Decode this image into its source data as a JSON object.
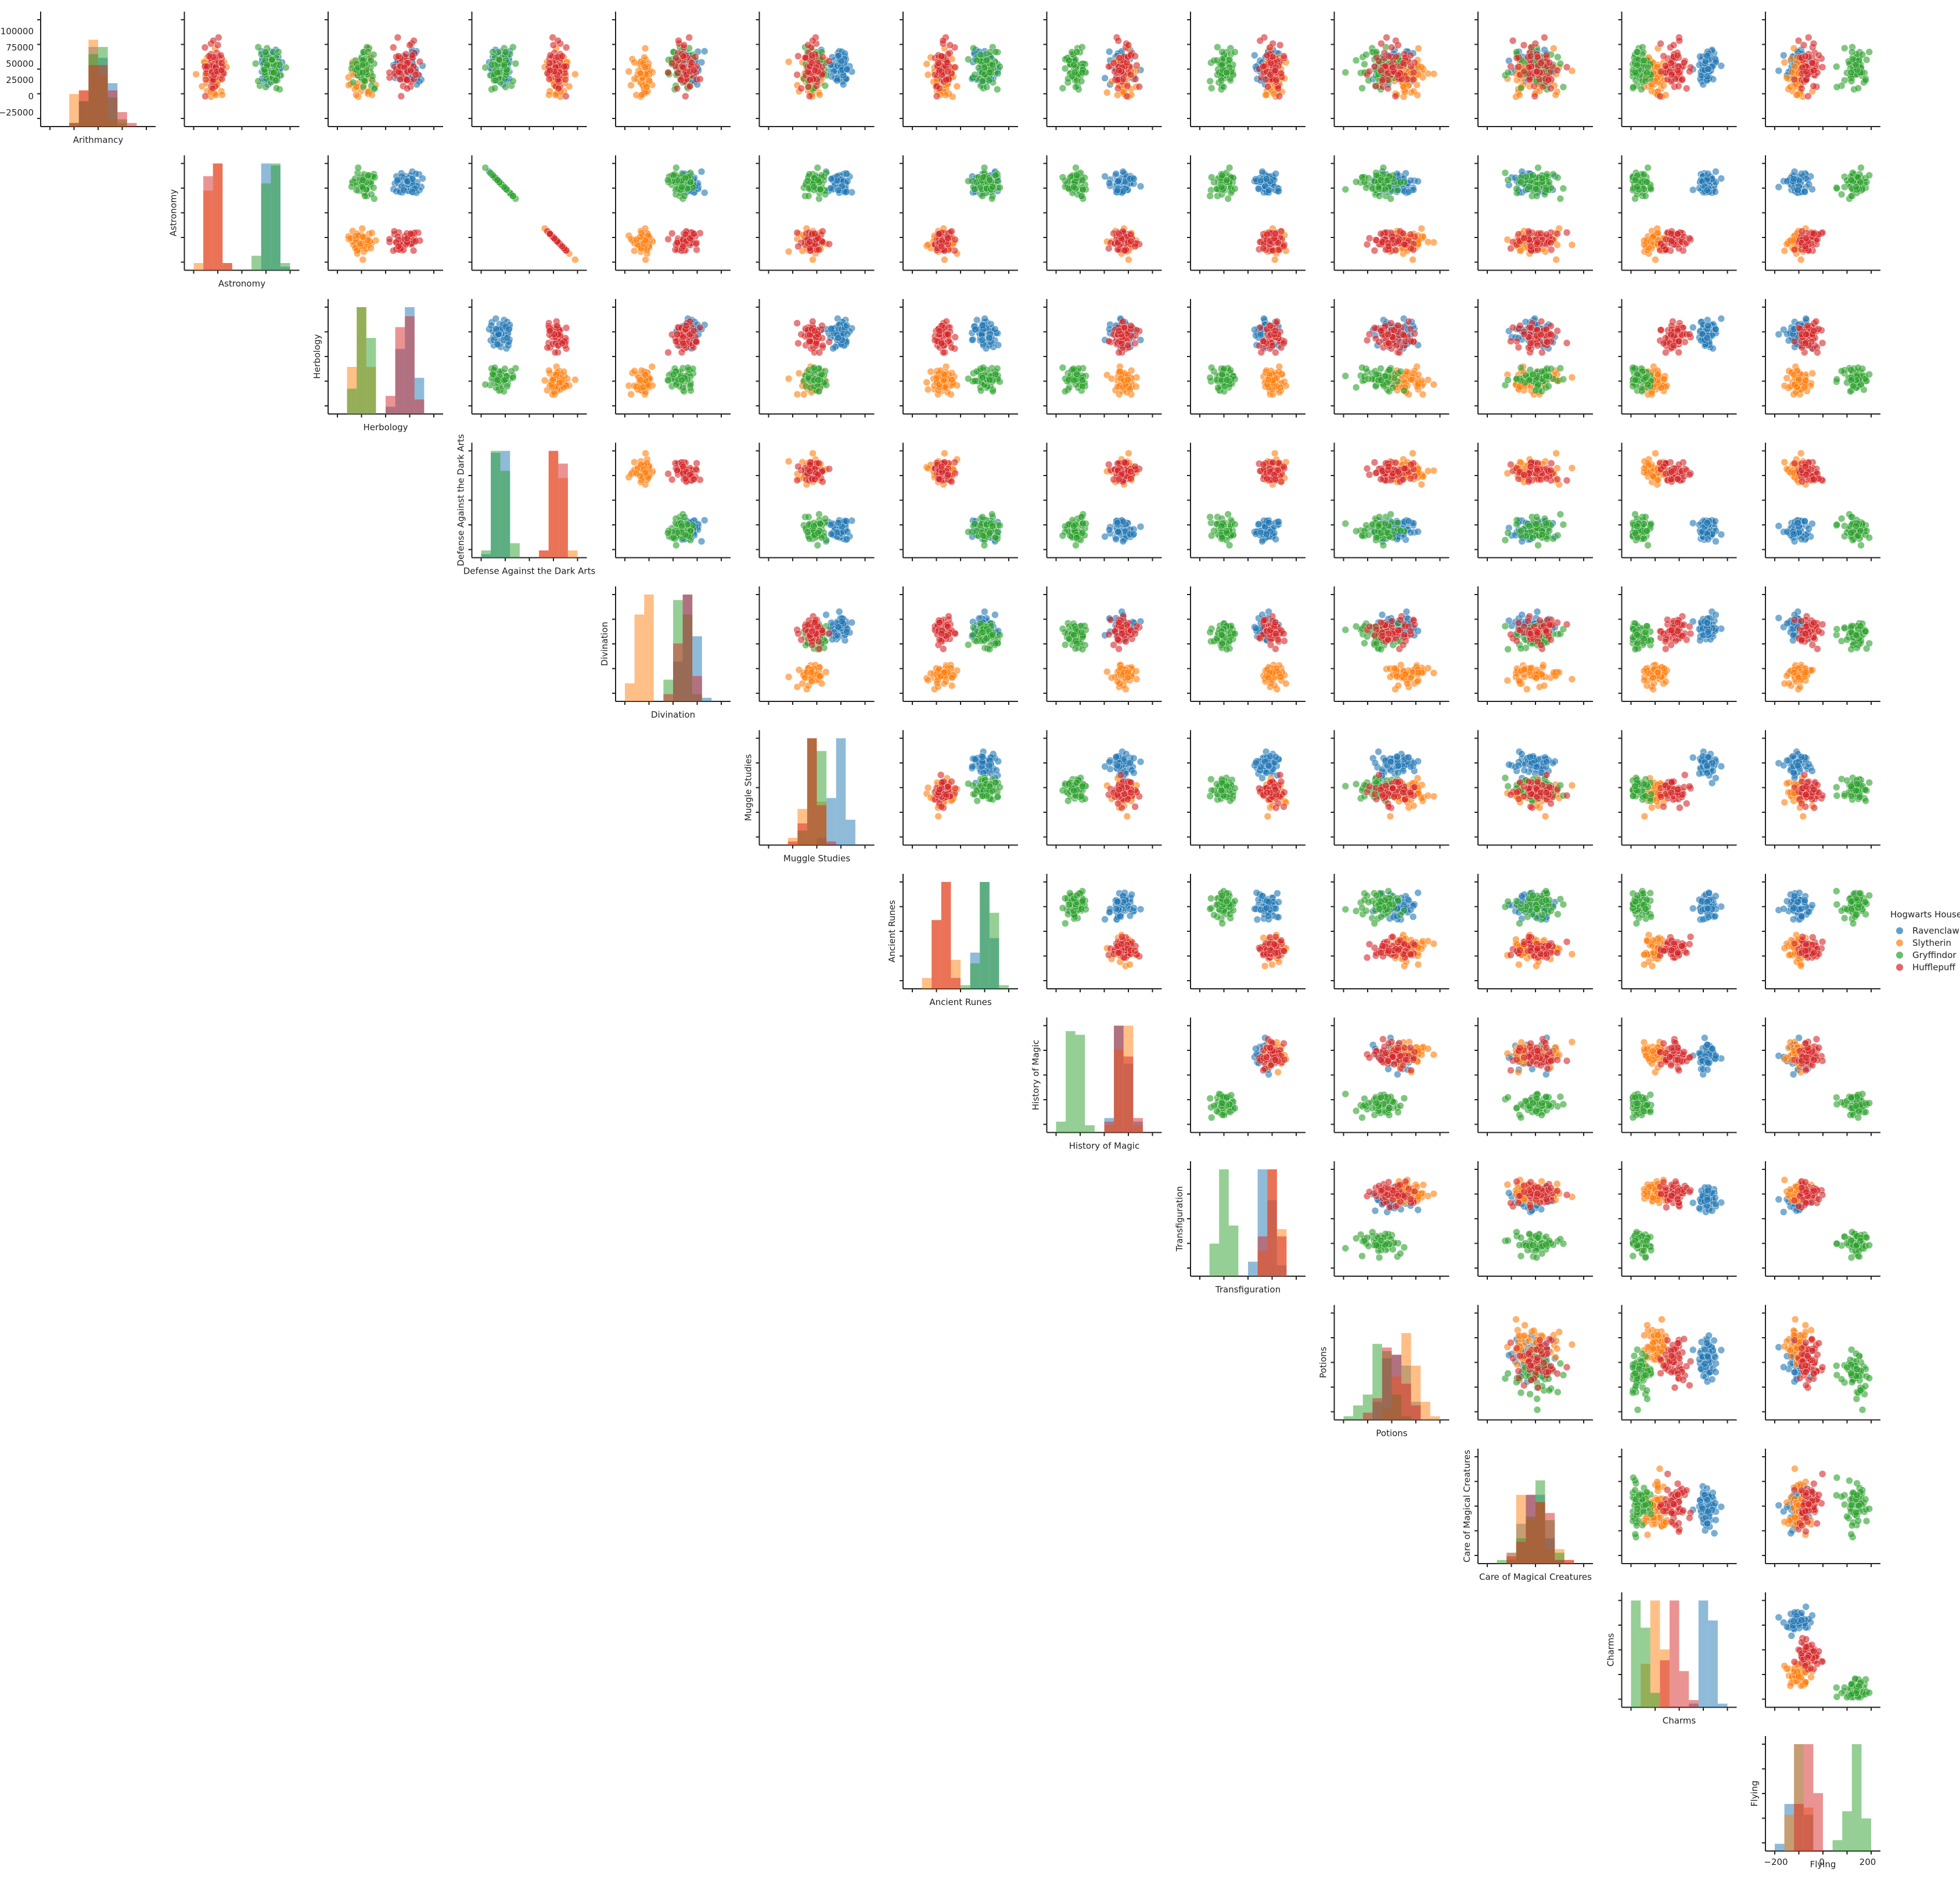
{
  "chart_data": {
    "type": "pairplot",
    "title": "",
    "subjects": [
      "Arithmancy",
      "Astronomy",
      "Herbology",
      "Defense Against the Dark Arts",
      "Divination",
      "Muggle Studies",
      "Ancient Runes",
      "History of Magic",
      "Transfiguration",
      "Potions",
      "Care of Magical Creatures",
      "Charms",
      "Flying"
    ],
    "diagonal": "histogram",
    "off_diagonal": "scatter",
    "layout": "upper-triangle",
    "hue": "Hogwarts House",
    "houses": [
      {
        "name": "Ravenclaw",
        "color": "#1f77b4"
      },
      {
        "name": "Slytherin",
        "color": "#ff7f0e"
      },
      {
        "name": "Gryffindor",
        "color": "#2ca02c"
      },
      {
        "name": "Hufflepuff",
        "color": "#d62728"
      }
    ],
    "legend": {
      "title": "Hogwarts House",
      "position": "right"
    },
    "arithmancy_ytick_labels": [
      "100000",
      "75000",
      "50000",
      "25000",
      "0",
      "−25000"
    ],
    "arithmancy_yticks": [
      100000,
      75000,
      50000,
      25000,
      0,
      -25000
    ],
    "flying_xtick_labels": [
      "−200",
      "0",
      "200"
    ],
    "flying_xticks": [
      -200,
      0,
      200
    ],
    "house_profiles": {
      "Ravenclaw": [
        0.5,
        0.8,
        0.72,
        0.8,
        0.66,
        0.75,
        0.75,
        0.68,
        0.7,
        0.55,
        0.5,
        0.8,
        0.25
      ],
      "Slytherin": [
        0.45,
        0.2,
        0.25,
        0.2,
        0.2,
        0.45,
        0.32,
        0.7,
        0.75,
        0.65,
        0.5,
        0.25,
        0.25
      ],
      "Gryffindor": [
        0.5,
        0.8,
        0.28,
        0.8,
        0.58,
        0.5,
        0.75,
        0.2,
        0.25,
        0.4,
        0.5,
        0.1,
        0.82
      ],
      "Hufflepuff": [
        0.5,
        0.2,
        0.7,
        0.2,
        0.63,
        0.45,
        0.32,
        0.7,
        0.75,
        0.5,
        0.5,
        0.45,
        0.35
      ]
    },
    "house_spread": [
      0.11,
      0.06,
      0.06,
      0.06,
      0.06,
      0.06,
      0.06,
      0.06,
      0.06,
      0.12,
      0.12,
      0.06,
      0.06
    ]
  }
}
